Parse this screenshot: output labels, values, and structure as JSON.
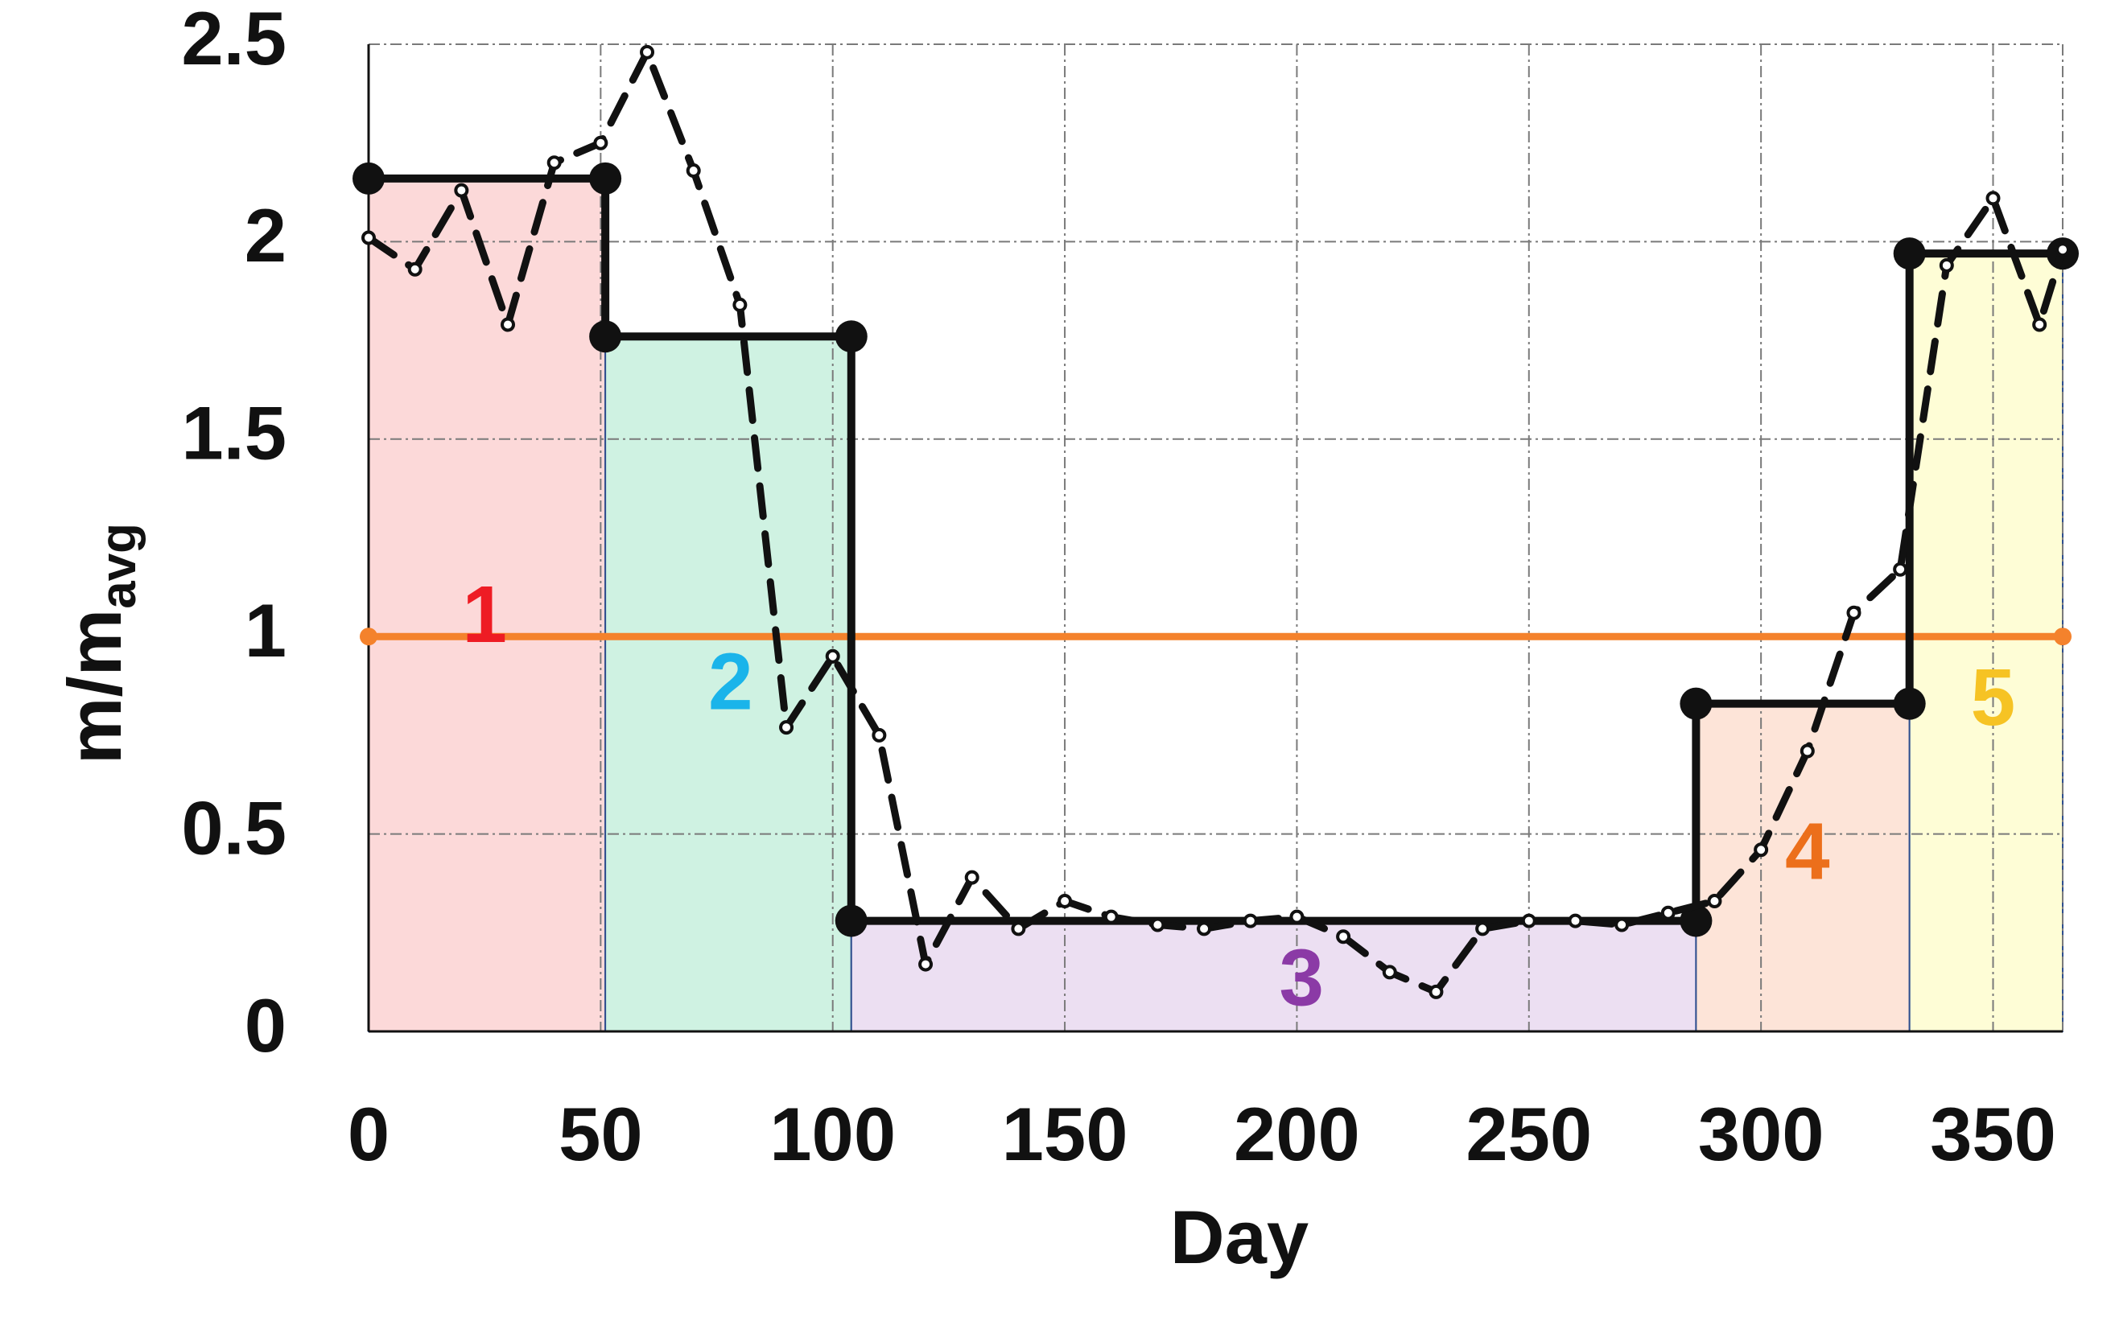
{
  "chart_data": {
    "type": "line",
    "xlabel": "Day",
    "ylabel_main": "m/m",
    "ylabel_sub": "avg",
    "xlim": [
      0,
      365
    ],
    "ylim": [
      0,
      2.5
    ],
    "x_ticks": [
      "0",
      "50",
      "100",
      "150",
      "200",
      "250",
      "300",
      "350"
    ],
    "x_tick_values": [
      0,
      50,
      100,
      150,
      200,
      250,
      300,
      350
    ],
    "y_ticks": [
      "0",
      "0.5",
      "1",
      "1.5",
      "2",
      "2.5"
    ],
    "y_tick_values": [
      0,
      0.5,
      1,
      1.5,
      2,
      2.5
    ],
    "grid": true,
    "regions": [
      {
        "label": "1",
        "x_start": 0,
        "x_end": 51,
        "value": 2.16,
        "fill": "#fcd9d9",
        "label_color": "#ee1c24",
        "label_x": 25,
        "label_y": 1.04
      },
      {
        "label": "2",
        "x_start": 51,
        "x_end": 104,
        "value": 1.76,
        "fill": "#cff2e2",
        "label_color": "#1ab4ea",
        "label_x": 78,
        "label_y": 0.87
      },
      {
        "label": "3",
        "x_start": 104,
        "x_end": 286,
        "value": 0.28,
        "fill": "#ecdff2",
        "label_color": "#8b3aa6",
        "label_x": 201,
        "label_y": 0.12
      },
      {
        "label": "4",
        "x_start": 286,
        "x_end": 332,
        "value": 0.83,
        "fill": "#fde4d8",
        "label_color": "#ec6f1b",
        "label_x": 310,
        "label_y": 0.44
      },
      {
        "label": "5",
        "x_start": 332,
        "x_end": 365,
        "value": 1.97,
        "fill": "#fefdd6",
        "label_color": "#f6c324",
        "label_x": 350,
        "label_y": 0.83
      }
    ],
    "series": [
      {
        "style": "dashed",
        "color": "#111111",
        "x": [
          0,
          10,
          20,
          30,
          40,
          50,
          60,
          70,
          80,
          90,
          100,
          110,
          120,
          130,
          140,
          150,
          160,
          170,
          180,
          190,
          200,
          210,
          220,
          230,
          240,
          250,
          260,
          270,
          280,
          290,
          300,
          310,
          320,
          330,
          340,
          350,
          360,
          365
        ],
        "y": [
          2.01,
          1.93,
          2.13,
          1.79,
          2.2,
          2.25,
          2.48,
          2.18,
          1.84,
          0.77,
          0.95,
          0.75,
          0.17,
          0.39,
          0.26,
          0.33,
          0.29,
          0.27,
          0.26,
          0.28,
          0.29,
          0.24,
          0.15,
          0.1,
          0.26,
          0.28,
          0.28,
          0.27,
          0.3,
          0.33,
          0.46,
          0.71,
          1.06,
          1.17,
          1.94,
          2.11,
          1.79,
          1.98
        ]
      }
    ],
    "reference_line": {
      "y": 1,
      "color": "#f4822c"
    }
  }
}
